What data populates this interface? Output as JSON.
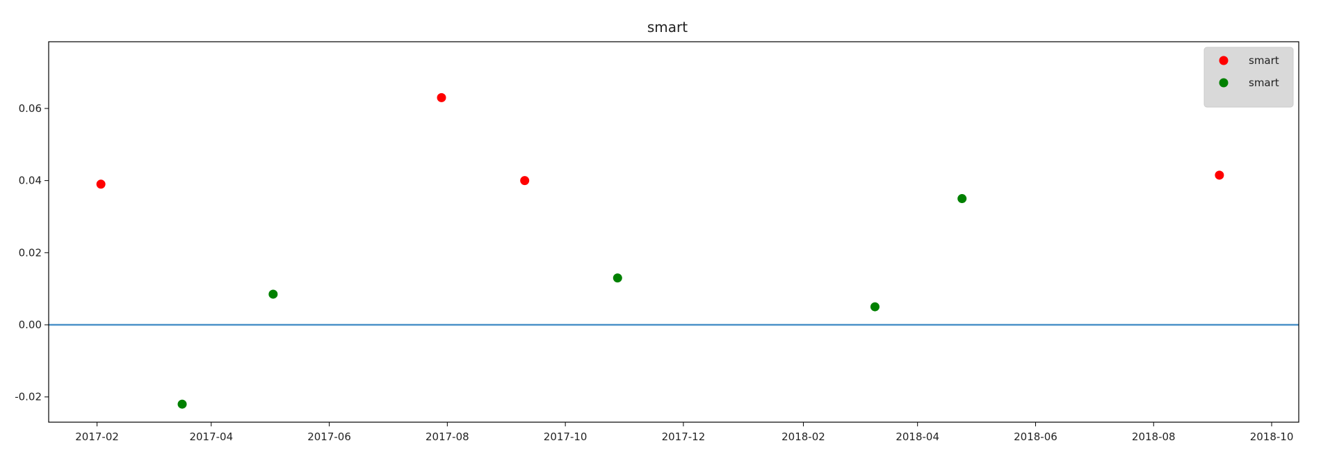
{
  "chart_data": {
    "type": "scatter",
    "title": "smart",
    "xlabel": "",
    "ylabel": "",
    "x_axis": {
      "kind": "date",
      "range": [
        "2017-01-07",
        "2018-10-15"
      ],
      "ticks": [
        "2017-02",
        "2017-04",
        "2017-06",
        "2017-08",
        "2017-10",
        "2017-12",
        "2018-02",
        "2018-04",
        "2018-06",
        "2018-08",
        "2018-10"
      ]
    },
    "y_axis": {
      "range": [
        -0.027,
        0.0785
      ],
      "ticks": [
        {
          "value": -0.02,
          "label": "-0.02"
        },
        {
          "value": 0.0,
          "label": "0.00"
        },
        {
          "value": 0.02,
          "label": "0.02"
        },
        {
          "value": 0.04,
          "label": "0.04"
        },
        {
          "value": 0.06,
          "label": "0.06"
        }
      ]
    },
    "grid": false,
    "legend_position": "top-right",
    "series": [
      {
        "name": "smart",
        "color": "#ff0000",
        "points": [
          {
            "x": "2017-02-03",
            "y": 0.039
          },
          {
            "x": "2017-07-29",
            "y": 0.063
          },
          {
            "x": "2017-09-10",
            "y": 0.04
          },
          {
            "x": "2018-09-04",
            "y": 0.0415
          }
        ]
      },
      {
        "name": "smart",
        "color": "#008000",
        "points": [
          {
            "x": "2017-03-17",
            "y": -0.022
          },
          {
            "x": "2017-05-03",
            "y": 0.0085
          },
          {
            "x": "2017-10-28",
            "y": 0.013
          },
          {
            "x": "2018-03-10",
            "y": 0.005
          },
          {
            "x": "2018-04-24",
            "y": 0.035
          }
        ]
      }
    ],
    "reference_line": {
      "y": 0.0,
      "color": "#4a90c8"
    }
  }
}
